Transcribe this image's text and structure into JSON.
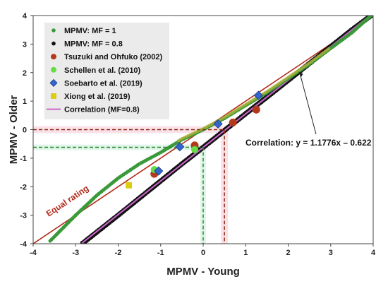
{
  "chart_data": {
    "type": "scatter",
    "xlabel": "MPMV - Young",
    "ylabel": "MPMV - Older",
    "xlim": [
      -4,
      4
    ],
    "ylim": [
      -4,
      4
    ],
    "xticks": [
      "-4",
      "-3",
      "-2",
      "-1",
      "0",
      "1",
      "2",
      "3",
      "4"
    ],
    "yticks": [
      "-4",
      "-3",
      "-2",
      "-1",
      "0",
      "1",
      "2",
      "3",
      "4"
    ],
    "grid": false,
    "legend_position": "top-left",
    "series": [
      {
        "name": "MPMV: MF = 1",
        "marker": "circle-small",
        "color": "#3a9a3a",
        "x_range": [
          -3.7,
          3.95
        ],
        "note_values": "dense curve from about (-3.7,-4.0) through (0,0) to (4,4)",
        "points": [
          [
            -3.6,
            -3.9
          ],
          [
            -3.0,
            -3.0
          ],
          [
            -2.5,
            -2.3
          ],
          [
            -2.0,
            -1.7
          ],
          [
            -1.5,
            -1.2
          ],
          [
            -1.0,
            -0.8
          ],
          [
            -0.5,
            -0.35
          ],
          [
            0,
            0
          ],
          [
            0.5,
            0.4
          ],
          [
            1.0,
            0.85
          ],
          [
            1.5,
            1.3
          ],
          [
            2.0,
            1.8
          ],
          [
            2.5,
            2.3
          ],
          [
            3.0,
            2.85
          ],
          [
            3.5,
            3.4
          ],
          [
            3.95,
            4.0
          ]
        ]
      },
      {
        "name": "MPMV: MF = 0.8",
        "marker": "circle-small",
        "color": "#111111",
        "points": [
          [
            -2.85,
            -4.0
          ],
          [
            -2.0,
            -3.0
          ],
          [
            -1.5,
            -2.4
          ],
          [
            -1.0,
            -1.8
          ],
          [
            -0.5,
            -1.2
          ],
          [
            0,
            -0.62
          ],
          [
            0.5,
            -0.03
          ],
          [
            1.0,
            0.56
          ],
          [
            1.5,
            1.14
          ],
          [
            2.0,
            1.73
          ],
          [
            2.5,
            2.32
          ],
          [
            3.0,
            2.91
          ],
          [
            3.5,
            3.5
          ],
          [
            3.95,
            4.0
          ]
        ]
      },
      {
        "name": "Tsuzuki and Ohfuko (2002)",
        "marker": "circle-large",
        "color": "#b23a1a",
        "points": [
          [
            -1.15,
            -1.55
          ],
          [
            -0.2,
            -0.55
          ],
          [
            0.7,
            0.25
          ],
          [
            1.25,
            0.7
          ]
        ]
      },
      {
        "name": "Schellen et al. (2010)",
        "marker": "circle-large",
        "color": "#66dd44",
        "points": [
          [
            -1.15,
            -1.4
          ],
          [
            -0.2,
            -0.7
          ]
        ]
      },
      {
        "name": "Soebarto et al. (2019)",
        "marker": "diamond",
        "color": "#3366cc",
        "points": [
          [
            -1.05,
            -1.45
          ],
          [
            -0.55,
            -0.6
          ],
          [
            0.35,
            0.2
          ],
          [
            1.3,
            1.2
          ]
        ]
      },
      {
        "name": "Xiong et al. (2019)",
        "marker": "square",
        "color": "#ddcc11",
        "points": [
          [
            -1.75,
            -1.95
          ]
        ]
      },
      {
        "name": "Correlation (MF=0.8)",
        "marker": "line",
        "color": "#cc66cc",
        "slope": 1.1776,
        "intercept": -0.622
      }
    ],
    "equal_rating": {
      "label": "Equal rating",
      "color": "#b22a1a"
    },
    "annotation": {
      "text": "Correlation: y = 1.1776x – 0.622"
    },
    "guides": [
      {
        "color": "#2a8a2a",
        "x": 0,
        "y": -0.62
      },
      {
        "color": "#8a2a10",
        "x": 0.5,
        "y": 0
      }
    ]
  }
}
